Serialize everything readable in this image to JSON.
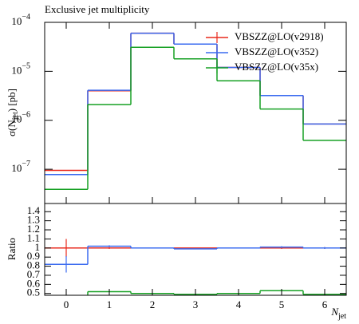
{
  "chart_data": {
    "type": "step-histogram",
    "title": "Exclusive jet multiplicity",
    "ylabel": {
      "text": "σ(N",
      "sub": "jet",
      "suffix": ") [pb]"
    },
    "xlabel": {
      "text": "N",
      "sub": "jet"
    },
    "ratio_label": "Ratio",
    "log_y": true,
    "legend": "upper-right",
    "bins": [
      -0.5,
      0.5,
      1.5,
      2.5,
      3.5,
      4.5,
      5.5,
      6.5
    ],
    "xlim": [
      -0.5,
      6.5
    ],
    "xticks": [
      0,
      1,
      2,
      3,
      4,
      5,
      6
    ],
    "ylim": [
      2e-08,
      0.0001
    ],
    "yticks": [
      {
        "value": 1e-07,
        "label": "10",
        "exponent": "−7"
      },
      {
        "value": 1e-06,
        "label": "10",
        "exponent": "−6"
      },
      {
        "value": 1e-05,
        "label": "10",
        "exponent": "−5"
      },
      {
        "value": 0.0001,
        "label": "10",
        "exponent": "−4"
      }
    ],
    "ratio_ylim": [
      0.48,
      1.49
    ],
    "ratio_yticks": [
      0.5,
      0.6,
      0.7,
      0.8,
      0.9,
      1,
      1.1,
      1.2,
      1.3,
      1.4
    ],
    "series": [
      {
        "name": "VBSZZ@LO(v2918)",
        "color": "#e8291c",
        "values": [
          9.5e-08,
          4e-06,
          6e-05,
          3.6e-05,
          1.2e-05,
          3.2e-06,
          8.4e-07
        ],
        "ratio": [
          1,
          1,
          1,
          1,
          1,
          1,
          1
        ],
        "ratio_errors": [
          0.1,
          0.01,
          0.005,
          0.005,
          0.005,
          0.01,
          0.01
        ]
      },
      {
        "name": "VBSZZ@LO(v352)",
        "color": "#3a6bf0",
        "values": [
          7.8e-08,
          4.1e-06,
          6e-05,
          3.6e-05,
          1.2e-05,
          3.2e-06,
          8.4e-07
        ],
        "ratio": [
          0.82,
          1.02,
          1,
          0.99,
          1,
          1.01,
          1
        ],
        "ratio_errors": [
          0.09,
          0.01,
          0.005,
          0.005,
          0.005,
          0.01,
          0.01
        ]
      },
      {
        "name": "VBSZZ@LO(v35x)",
        "color": "#16a023",
        "values": [
          3.9e-08,
          2.1e-06,
          3.1e-05,
          1.8e-05,
          6.4e-06,
          1.7e-06,
          3.9e-07
        ],
        "ratio": [
          0.41,
          0.52,
          0.5,
          0.49,
          0.5,
          0.53,
          0.49
        ],
        "ratio_errors": [
          0.02,
          0.005,
          0.003,
          0.003,
          0.003,
          0.005,
          0.005
        ]
      }
    ]
  }
}
